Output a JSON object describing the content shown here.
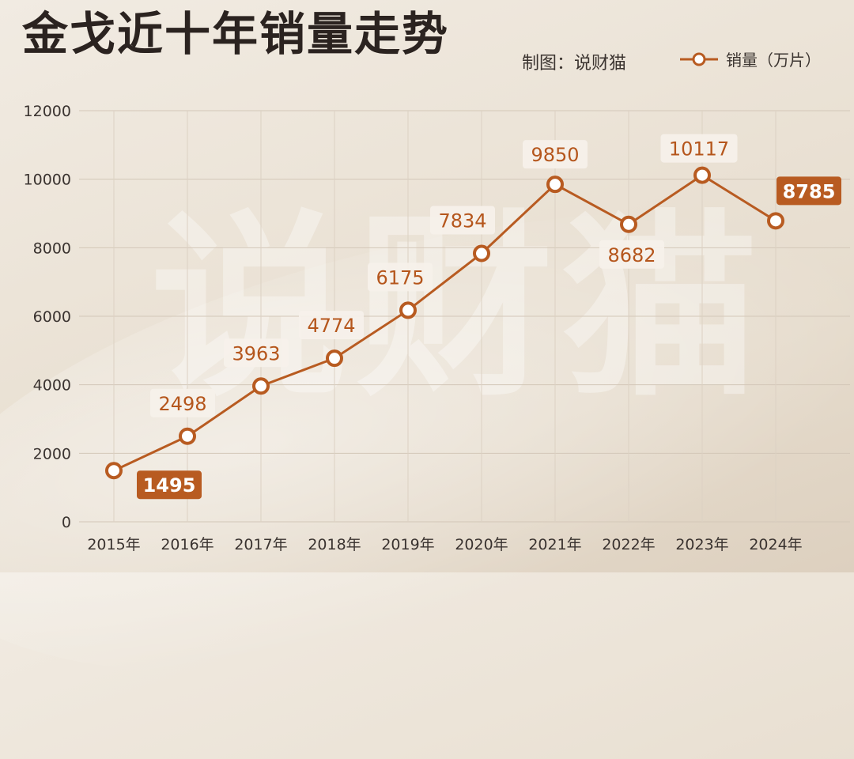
{
  "title": "金戈近十年销量走势",
  "credit": "制图：说财猫",
  "watermark": "说财猫",
  "legend": {
    "label": "销量（万片）"
  },
  "colors": {
    "line": "#b85b21",
    "marker_fill": "#ffffff",
    "label_box": "#f6f1ea",
    "highlight_box": "#b85b21"
  },
  "chart_data": {
    "type": "line",
    "title": "金戈近十年销量走势",
    "categories": [
      "2015年",
      "2016年",
      "2017年",
      "2018年",
      "2019年",
      "2020年",
      "2021年",
      "2022年",
      "2023年",
      "2024年"
    ],
    "series": [
      {
        "name": "销量（万片）",
        "values": [
          1495,
          2498,
          3963,
          4774,
          6175,
          7834,
          9850,
          8682,
          10117,
          8785
        ]
      }
    ],
    "yticks": [
      "0",
      "2000",
      "4000",
      "6000",
      "8000",
      "10000",
      "12000"
    ],
    "ylim": [
      0,
      12000
    ],
    "grid": true,
    "legend_position": "top-right",
    "highlighted_points": [
      "2015年",
      "2024年"
    ]
  }
}
